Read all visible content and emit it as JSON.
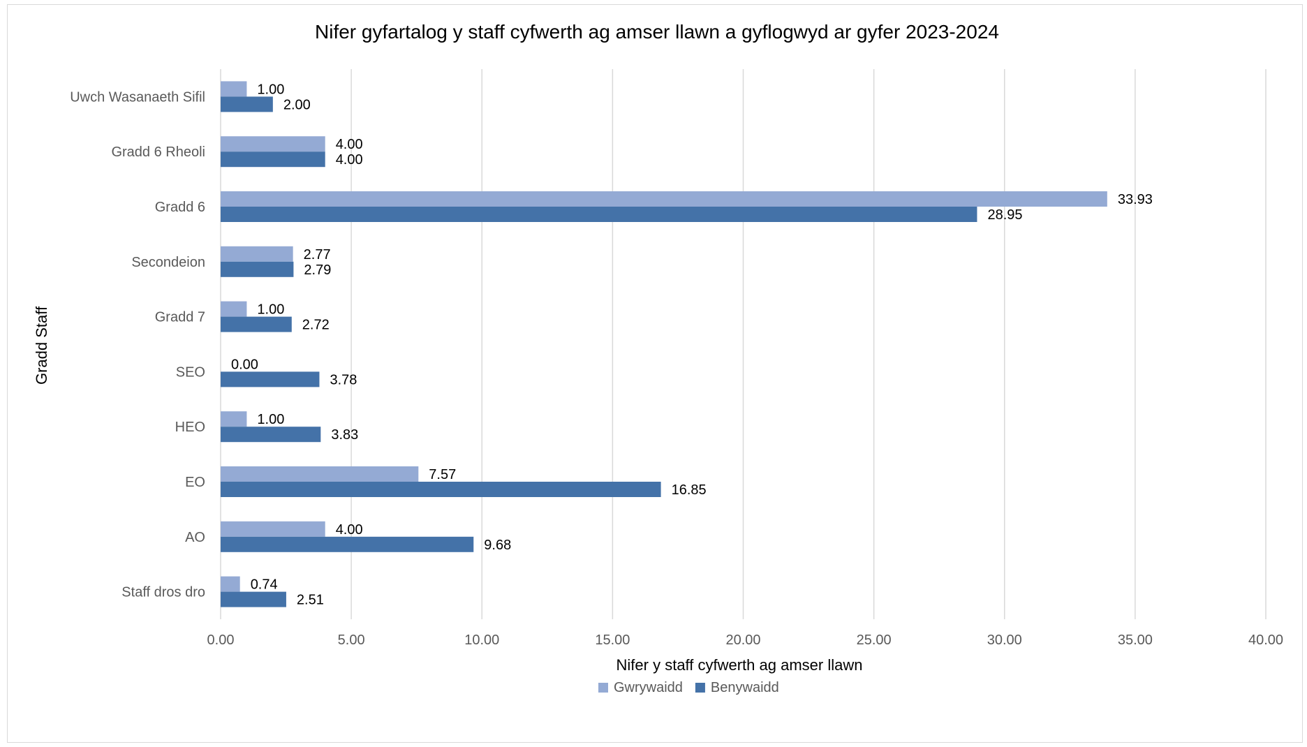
{
  "chart_data": {
    "type": "bar",
    "orientation": "horizontal",
    "title": "Nifer gyfartalog y staff cyfwerth ag amser llawn a gyflogwyd ar gyfer 2023-2024",
    "xlabel": "Nifer y staff cyfwerth ag amser llawn",
    "ylabel": "Gradd Staff",
    "xlim": [
      0,
      40
    ],
    "xticks": [
      "0.00",
      "5.00",
      "10.00",
      "15.00",
      "20.00",
      "25.00",
      "30.00",
      "35.00",
      "40.00"
    ],
    "grid": true,
    "legend_position": "bottom",
    "categories": [
      "Uwch Wasanaeth Sifil",
      "Gradd 6 Rheoli",
      "Gradd 6",
      "Secondeion",
      "Gradd 7",
      "SEO",
      "HEO",
      "EO",
      "AO",
      "Staff dros dro"
    ],
    "series": [
      {
        "name": "Gwrywaidd",
        "color": "#94aad4",
        "values": [
          1.0,
          4.0,
          33.93,
          2.77,
          1.0,
          0.0,
          1.0,
          7.57,
          4.0,
          0.74
        ],
        "labels": [
          "1.00",
          "4.00",
          "33.93",
          "2.77",
          "1.00",
          "0.00",
          "1.00",
          "7.57",
          "4.00",
          "0.74"
        ]
      },
      {
        "name": "Benywaidd",
        "color": "#4472a8",
        "values": [
          2.0,
          4.0,
          28.95,
          2.79,
          2.72,
          3.78,
          3.83,
          16.85,
          9.68,
          2.51
        ],
        "labels": [
          "2.00",
          "4.00",
          "28.95",
          "2.79",
          "2.72",
          "3.78",
          "3.83",
          "16.85",
          "9.68",
          "2.51"
        ]
      }
    ]
  }
}
